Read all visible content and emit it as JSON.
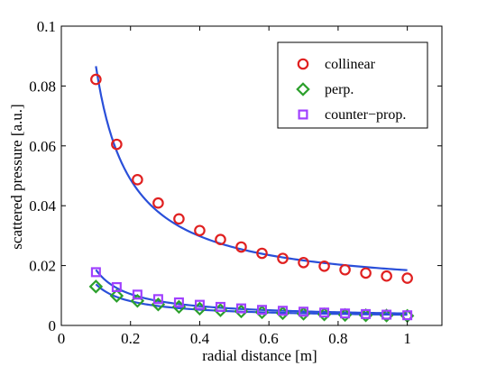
{
  "chart_data": {
    "type": "scatter",
    "xlabel": "radial distance [m]",
    "ylabel": "scattered pressure [a.u.]",
    "xlim": [
      0,
      1.1
    ],
    "ylim": [
      0,
      0.1
    ],
    "xticks": [
      0,
      0.2,
      0.4,
      0.6,
      0.8,
      1
    ],
    "xtick_labels": [
      "0",
      "0.2",
      "0.4",
      "0.6",
      "0.8",
      "1"
    ],
    "yticks": [
      0,
      0.02,
      0.04,
      0.06,
      0.08,
      0.1
    ],
    "ytick_labels": [
      "0",
      "0.02",
      "0.04",
      "0.06",
      "0.08",
      "0.1"
    ],
    "grid": false,
    "legend_position": "top-right",
    "fit_color": "#2a4fd9",
    "series": [
      {
        "name": "collinear",
        "marker": "circle",
        "color": "#e02020",
        "x": [
          0.1,
          0.16,
          0.22,
          0.28,
          0.34,
          0.4,
          0.46,
          0.52,
          0.58,
          0.64,
          0.7,
          0.76,
          0.82,
          0.88,
          0.94,
          1.0
        ],
        "y": [
          0.0822,
          0.0605,
          0.0487,
          0.0409,
          0.0356,
          0.0317,
          0.0287,
          0.0262,
          0.0241,
          0.0224,
          0.021,
          0.0198,
          0.0186,
          0.0175,
          0.0165,
          0.0158
        ]
      },
      {
        "name": "perp.",
        "marker": "diamond",
        "color": "#2ca02c",
        "x": [
          0.1,
          0.16,
          0.22,
          0.28,
          0.34,
          0.4,
          0.46,
          0.52,
          0.58,
          0.64,
          0.7,
          0.76,
          0.82,
          0.88,
          0.94,
          1.0
        ],
        "y": [
          0.013,
          0.0099,
          0.0082,
          0.007,
          0.0062,
          0.0056,
          0.0051,
          0.0047,
          0.0044,
          0.0041,
          0.0039,
          0.0037,
          0.0035,
          0.0034,
          0.0033,
          0.0032
        ]
      },
      {
        "name": "counter−prop.",
        "marker": "square",
        "color": "#a040ff",
        "x": [
          0.1,
          0.16,
          0.22,
          0.28,
          0.34,
          0.4,
          0.46,
          0.52,
          0.58,
          0.64,
          0.7,
          0.76,
          0.82,
          0.88,
          0.94,
          1.0
        ],
        "y": [
          0.0178,
          0.0128,
          0.0103,
          0.0088,
          0.0077,
          0.0069,
          0.0062,
          0.0057,
          0.0052,
          0.0049,
          0.0046,
          0.0043,
          0.004,
          0.0038,
          0.0036,
          0.0034
        ]
      }
    ]
  }
}
